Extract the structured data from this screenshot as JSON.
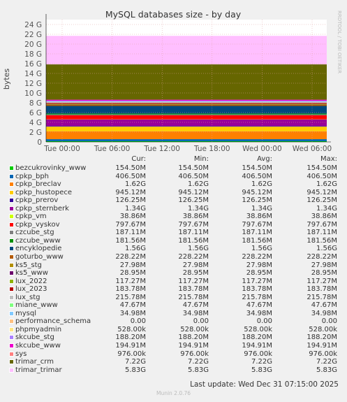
{
  "chart_data": {
    "type": "area",
    "title": "MySQL databases size - by day",
    "ylabel": "bytes",
    "side_label": "RRDTOOL / TOBI OETIKER",
    "yticks": [
      "0",
      "2 G",
      "4 G",
      "6 G",
      "8 G",
      "10 G",
      "12 G",
      "14 G",
      "16 G",
      "18 G",
      "20 G",
      "22 G",
      "24 G"
    ],
    "ylim": [
      0,
      25
    ],
    "y_unit": "G",
    "xticks": [
      "Tue 00:00",
      "Tue 06:00",
      "Tue 12:00",
      "Tue 18:00",
      "Wed 00:00",
      "Wed 06:00"
    ],
    "grid": true,
    "stacked": true,
    "columns": [
      "Cur:",
      "Min:",
      "Avg:",
      "Max:"
    ],
    "series": [
      {
        "name": "bezcukrovinky_www",
        "color": "#00cc00",
        "size_g": 0.1545,
        "cur": "154.50M",
        "min": "154.50M",
        "avg": "154.50M",
        "max": "154.50M"
      },
      {
        "name": "cpkp_bph",
        "color": "#0066b3",
        "size_g": 0.4065,
        "cur": "406.50M",
        "min": "406.50M",
        "avg": "406.50M",
        "max": "406.50M"
      },
      {
        "name": "cpkp_breclav",
        "color": "#ff8000",
        "size_g": 1.62,
        "cur": "1.62G",
        "min": "1.62G",
        "avg": "1.62G",
        "max": "1.62G"
      },
      {
        "name": "cpkp_hustopece",
        "color": "#ffcc00",
        "size_g": 0.94512,
        "cur": "945.12M",
        "min": "945.12M",
        "avg": "945.12M",
        "max": "945.12M"
      },
      {
        "name": "cpkp_prerov",
        "color": "#330099",
        "size_g": 0.12625,
        "cur": "126.25M",
        "min": "126.25M",
        "avg": "126.25M",
        "max": "126.25M"
      },
      {
        "name": "cpkp_sternberk",
        "color": "#990099",
        "size_g": 1.34,
        "cur": "1.34G",
        "min": "1.34G",
        "avg": "1.34G",
        "max": "1.34G"
      },
      {
        "name": "cpkp_vm",
        "color": "#ccff00",
        "size_g": 0.03886,
        "cur": "38.86M",
        "min": "38.86M",
        "avg": "38.86M",
        "max": "38.86M"
      },
      {
        "name": "cpkp_vyskov",
        "color": "#ff0000",
        "size_g": 0.79767,
        "cur": "797.67M",
        "min": "797.67M",
        "avg": "797.67M",
        "max": "797.67M"
      },
      {
        "name": "czcube_stg",
        "color": "#808080",
        "size_g": 0.18711,
        "cur": "187.11M",
        "min": "187.11M",
        "avg": "187.11M",
        "max": "187.11M"
      },
      {
        "name": "czcube_www",
        "color": "#008f00",
        "size_g": 0.18156,
        "cur": "181.56M",
        "min": "181.56M",
        "avg": "181.56M",
        "max": "181.56M"
      },
      {
        "name": "encyklopedie",
        "color": "#00487d",
        "size_g": 1.56,
        "cur": "1.56G",
        "min": "1.56G",
        "avg": "1.56G",
        "max": "1.56G"
      },
      {
        "name": "goturbo_www",
        "color": "#b35a00",
        "size_g": 0.22822,
        "cur": "228.22M",
        "min": "228.22M",
        "avg": "228.22M",
        "max": "228.22M"
      },
      {
        "name": "ks5_stg",
        "color": "#b38f00",
        "size_g": 0.02798,
        "cur": "27.98M",
        "min": "27.98M",
        "avg": "27.98M",
        "max": "27.98M"
      },
      {
        "name": "ks5_www",
        "color": "#6b006b",
        "size_g": 0.02895,
        "cur": "28.95M",
        "min": "28.95M",
        "avg": "28.95M",
        "max": "28.95M"
      },
      {
        "name": "lux_2022",
        "color": "#8fb300",
        "size_g": 0.11727,
        "cur": "117.27M",
        "min": "117.27M",
        "avg": "117.27M",
        "max": "117.27M"
      },
      {
        "name": "lux_2023",
        "color": "#b30000",
        "size_g": 0.18378,
        "cur": "183.78M",
        "min": "183.78M",
        "avg": "183.78M",
        "max": "183.78M"
      },
      {
        "name": "lux_stg",
        "color": "#bebebe",
        "size_g": 0.21578,
        "cur": "215.78M",
        "min": "215.78M",
        "avg": "215.78M",
        "max": "215.78M"
      },
      {
        "name": "miane_www",
        "color": "#80ff80",
        "size_g": 0.04767,
        "cur": "47.67M",
        "min": "47.67M",
        "avg": "47.67M",
        "max": "47.67M"
      },
      {
        "name": "mysql",
        "color": "#80c9ff",
        "size_g": 0.03498,
        "cur": "34.98M",
        "min": "34.98M",
        "avg": "34.98M",
        "max": "34.98M"
      },
      {
        "name": "performance_schema",
        "color": "#ffc080",
        "size_g": 0,
        "cur": "0.00",
        "min": "0.00",
        "avg": "0.00",
        "max": "0.00"
      },
      {
        "name": "phpmyadmin",
        "color": "#ffe680",
        "size_g": 0.000528,
        "cur": "528.00k",
        "min": "528.00k",
        "avg": "528.00k",
        "max": "528.00k"
      },
      {
        "name": "skcube_stg",
        "color": "#aa80ff",
        "size_g": 0.1882,
        "cur": "188.20M",
        "min": "188.20M",
        "avg": "188.20M",
        "max": "188.20M"
      },
      {
        "name": "skcube_www",
        "color": "#ee00cc",
        "size_g": 0.19491,
        "cur": "194.91M",
        "min": "194.91M",
        "avg": "194.91M",
        "max": "194.91M"
      },
      {
        "name": "sys",
        "color": "#ff8080",
        "size_g": 0.000976,
        "cur": "976.00k",
        "min": "976.00k",
        "avg": "976.00k",
        "max": "976.00k"
      },
      {
        "name": "trimar_crm",
        "color": "#666600",
        "size_g": 7.22,
        "cur": "7.22G",
        "min": "7.22G",
        "avg": "7.22G",
        "max": "7.22G"
      },
      {
        "name": "trimar_trimar",
        "color": "#ffbfff",
        "size_g": 5.83,
        "cur": "5.83G",
        "min": "5.83G",
        "avg": "5.83G",
        "max": "5.83G"
      }
    ]
  },
  "last_update": "Last update: Wed Dec 31 07:15:00 2025",
  "footer": "Munin 2.0.76"
}
